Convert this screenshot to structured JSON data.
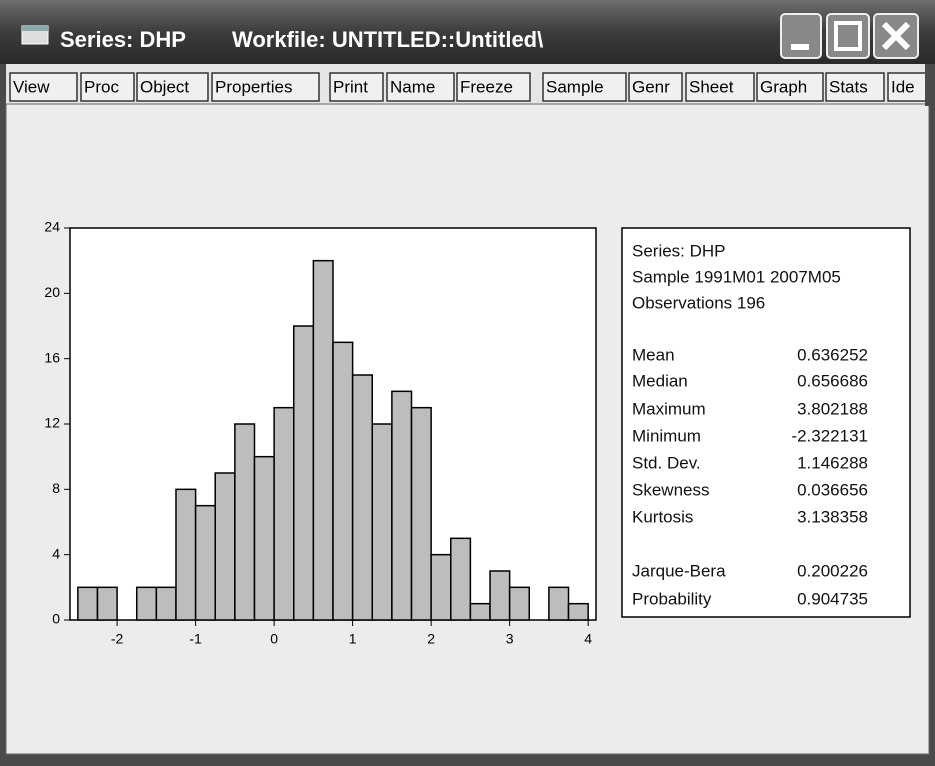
{
  "window": {
    "title": "Series: DHP",
    "workfile": "Workfile: UNTITLED::Untitled\\"
  },
  "toolbar": [
    "View",
    "Proc",
    "Object",
    "Properties",
    "Print",
    "Name",
    "Freeze",
    "Sample",
    "Genr",
    "Sheet",
    "Graph",
    "Stats",
    "Ide"
  ],
  "chart_data": {
    "type": "histogram",
    "bins": [
      -2.5,
      -2.25,
      -2.0,
      -1.75,
      -1.5,
      -1.25,
      -1.0,
      -0.75,
      -0.5,
      -0.25,
      0,
      0.25,
      0.5,
      0.75,
      1.0,
      1.25,
      1.5,
      1.75,
      2.0,
      2.25,
      2.5,
      2.75,
      3.0,
      3.25,
      3.5,
      3.75,
      4.0
    ],
    "values": [
      2,
      2,
      0,
      2,
      2,
      8,
      7,
      9,
      12,
      10,
      13,
      18,
      22,
      17,
      15,
      12,
      14,
      13,
      4,
      5,
      1,
      3,
      2,
      0,
      2,
      1
    ],
    "color": "#bdbdbd",
    "xlim": [
      -2.6,
      4.1
    ],
    "xticks": [
      -2,
      -1,
      0,
      1,
      2,
      3,
      4
    ],
    "ylim": [
      0,
      24
    ],
    "yticks": [
      0,
      4,
      8,
      12,
      16,
      20,
      24
    ]
  },
  "stats": {
    "header": [
      "Series: DHP",
      "Sample 1991M01 2007M05",
      "Observations 196"
    ],
    "rows": [
      [
        "Mean",
        "0.636252"
      ],
      [
        "Median",
        "0.656686"
      ],
      [
        "Maximum",
        "3.802188"
      ],
      [
        "Minimum",
        "-2.322131"
      ],
      [
        "Std. Dev.",
        "1.146288"
      ],
      [
        "Skewness",
        "0.036656"
      ],
      [
        "Kurtosis",
        "3.138358"
      ],
      [
        "Jarque-Bera",
        "0.200226"
      ],
      [
        "Probability",
        "0.904735"
      ]
    ]
  }
}
